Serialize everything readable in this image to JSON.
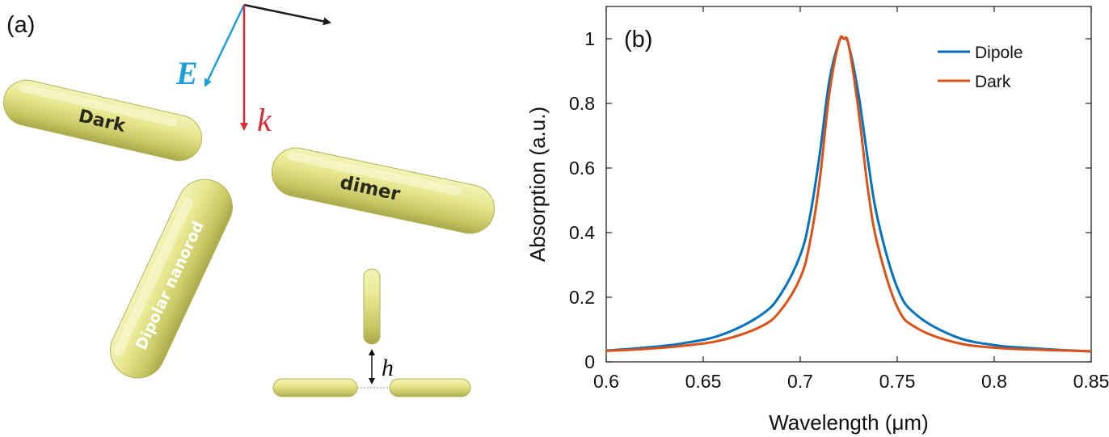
{
  "panel_a": {
    "label": "(a)",
    "E_label": "E",
    "k_label": "k",
    "h_label": "h",
    "rod_dark": "Dark",
    "rod_dimer": "dimer",
    "rod_dipolar": "Dipolar nanorod",
    "colors": {
      "E_arrow": "#1e9fd8",
      "k_arrow": "#d62a35",
      "x_arrow": "#1a1a1a",
      "rod": "#e6e68f"
    }
  },
  "chart_data": {
    "type": "line",
    "panel_label": "(b)",
    "title": "",
    "xlabel": "Wavelength (μm)",
    "ylabel": "Absorption (a.u.)",
    "xlim": [
      0.6,
      0.85
    ],
    "ylim": [
      0,
      1.1
    ],
    "xticks": [
      "0.6",
      "0.65",
      "0.7",
      "0.75",
      "0.8",
      "0.85"
    ],
    "yticks": [
      "0",
      "0.2",
      "0.4",
      "0.6",
      "0.8",
      "1"
    ],
    "legend_position": "top-right",
    "grid": false,
    "series": [
      {
        "name": "Dipole",
        "color": "#0072bd",
        "x": [
          0.6,
          0.62,
          0.64,
          0.66,
          0.68,
          0.69,
          0.7,
          0.705,
          0.71,
          0.715,
          0.72,
          0.7225,
          0.725,
          0.73,
          0.735,
          0.74,
          0.75,
          0.76,
          0.78,
          0.8,
          0.82,
          0.85
        ],
        "y": [
          0.035,
          0.044,
          0.058,
          0.085,
          0.146,
          0.21,
          0.33,
          0.45,
          0.64,
          0.87,
          0.99,
          1.0,
          0.98,
          0.83,
          0.62,
          0.44,
          0.23,
          0.145,
          0.078,
          0.052,
          0.042,
          0.032
        ]
      },
      {
        "name": "Dark",
        "color": "#d95319",
        "x": [
          0.6,
          0.62,
          0.64,
          0.66,
          0.68,
          0.69,
          0.7,
          0.705,
          0.71,
          0.715,
          0.72,
          0.7225,
          0.725,
          0.73,
          0.735,
          0.74,
          0.75,
          0.76,
          0.78,
          0.8,
          0.82,
          0.85
        ],
        "y": [
          0.034,
          0.04,
          0.05,
          0.068,
          0.11,
          0.16,
          0.26,
          0.37,
          0.56,
          0.83,
          0.99,
          1.0,
          0.98,
          0.78,
          0.53,
          0.36,
          0.17,
          0.105,
          0.06,
          0.044,
          0.038,
          0.033
        ]
      }
    ]
  }
}
